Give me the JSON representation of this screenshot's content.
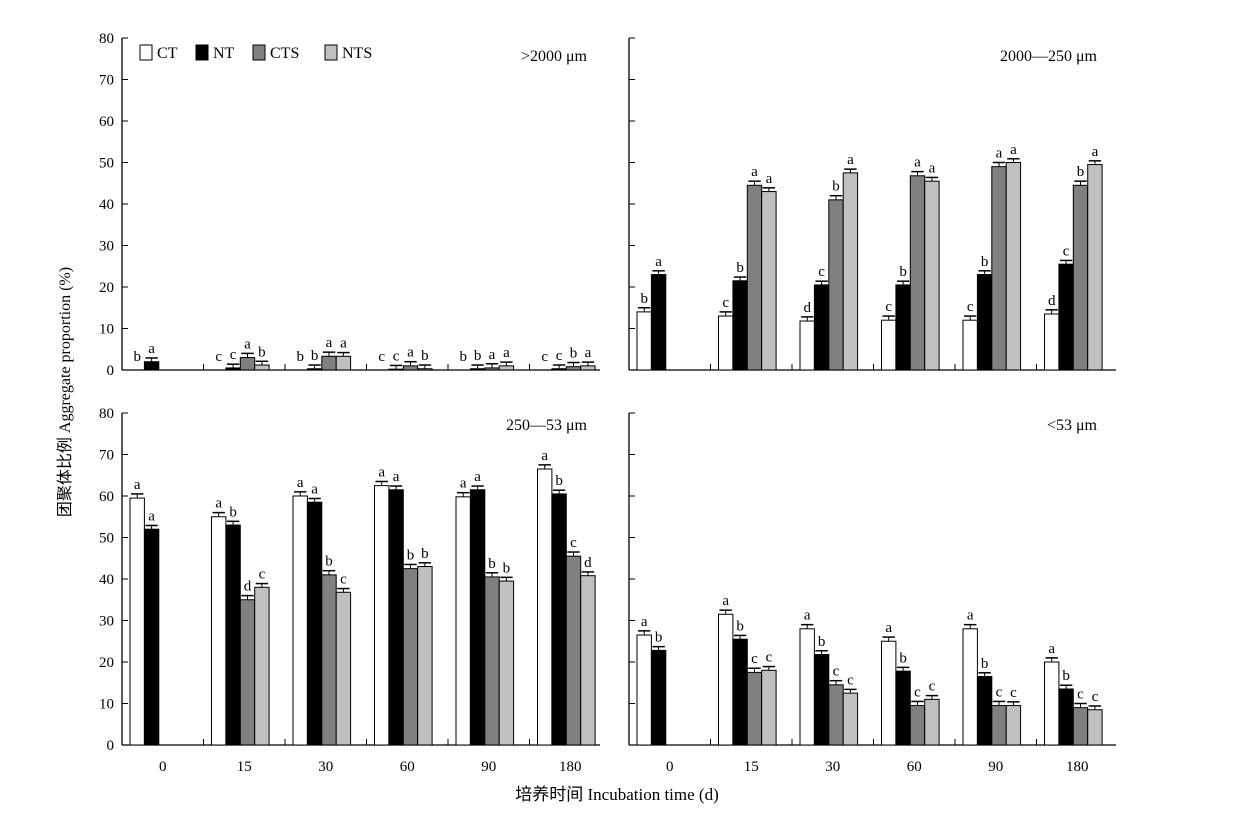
{
  "figure": {
    "ylabel": "团聚体比例 Aggregate proportion (%)",
    "xlabel": "培养时间 Incubation time (d)",
    "colors": {
      "CT": "#ffffff",
      "NT": "#000000",
      "CTS": "#808080",
      "NTS": "#c0c0c0"
    },
    "legend": [
      "CT",
      "NT",
      "CTS",
      "NTS"
    ]
  },
  "chart_data": [
    {
      "type": "bar",
      "title": ">2000 μm",
      "categories": [
        "0",
        "15",
        "30",
        "60",
        "90",
        "180"
      ],
      "ylim": [
        0,
        80
      ],
      "yticks": [
        "0",
        "10",
        "20",
        "30",
        "40",
        "50",
        "60",
        "70",
        "80"
      ],
      "legend_position": "top-left",
      "series": [
        {
          "name": "CT",
          "values": [
            0,
            0,
            0,
            0,
            0,
            0
          ],
          "letters": [
            "b",
            "c",
            "b",
            "c",
            "b",
            "c"
          ]
        },
        {
          "name": "NT",
          "values": [
            2.0,
            0.5,
            0.3,
            0.2,
            0.3,
            0.3
          ],
          "letters": [
            "a",
            "c",
            "b",
            "c",
            "b",
            "c"
          ]
        },
        {
          "name": "CTS",
          "values": [
            null,
            3.0,
            3.3,
            1.0,
            0.5,
            0.8
          ],
          "letters": [
            "",
            "a",
            "a",
            "a",
            "a",
            "b"
          ]
        },
        {
          "name": "NTS",
          "values": [
            null,
            1.2,
            3.3,
            0.3,
            1.0,
            1.0
          ],
          "letters": [
            "",
            "b",
            "a",
            "b",
            "a",
            "a"
          ]
        }
      ]
    },
    {
      "type": "bar",
      "title": "2000—250 μm",
      "categories": [
        "0",
        "15",
        "30",
        "60",
        "90",
        "180"
      ],
      "ylim": [
        0,
        80
      ],
      "series": [
        {
          "name": "CT",
          "values": [
            14.0,
            13.0,
            11.8,
            12.0,
            12.0,
            13.5
          ],
          "letters": [
            "b",
            "c",
            "d",
            "c",
            "c",
            "d"
          ]
        },
        {
          "name": "NT",
          "values": [
            23.0,
            21.5,
            20.5,
            20.5,
            23.0,
            25.5
          ],
          "letters": [
            "a",
            "b",
            "c",
            "b",
            "b",
            "c"
          ]
        },
        {
          "name": "CTS",
          "values": [
            null,
            44.5,
            41.0,
            46.8,
            49.0,
            44.5
          ],
          "letters": [
            "",
            "a",
            "b",
            "a",
            "a",
            "b"
          ]
        },
        {
          "name": "NTS",
          "values": [
            null,
            43.0,
            47.5,
            45.5,
            50.0,
            49.5
          ],
          "letters": [
            "",
            "a",
            "a",
            "a",
            "a",
            "a"
          ]
        }
      ]
    },
    {
      "type": "bar",
      "title": "250—53 μm",
      "categories": [
        "0",
        "15",
        "30",
        "60",
        "90",
        "180"
      ],
      "ylim": [
        0,
        80
      ],
      "yticks": [
        "0",
        "10",
        "20",
        "30",
        "40",
        "50",
        "60",
        "70",
        "80"
      ],
      "series": [
        {
          "name": "CT",
          "values": [
            59.5,
            55.0,
            60.0,
            62.5,
            59.8,
            66.5
          ],
          "letters": [
            "a",
            "a",
            "a",
            "a",
            "a",
            "a"
          ]
        },
        {
          "name": "NT",
          "values": [
            52.0,
            53.0,
            58.5,
            61.5,
            61.5,
            60.5
          ],
          "letters": [
            "a",
            "b",
            "a",
            "a",
            "a",
            "b"
          ]
        },
        {
          "name": "CTS",
          "values": [
            null,
            35.0,
            41.0,
            42.5,
            40.5,
            45.5
          ],
          "letters": [
            "",
            "d",
            "b",
            "b",
            "b",
            "c"
          ]
        },
        {
          "name": "NTS",
          "values": [
            null,
            38.0,
            36.8,
            43.0,
            39.5,
            40.8
          ],
          "letters": [
            "",
            "c",
            "c",
            "b",
            "b",
            "d"
          ]
        }
      ]
    },
    {
      "type": "bar",
      "title": "<53 μm",
      "categories": [
        "0",
        "15",
        "30",
        "60",
        "90",
        "180"
      ],
      "ylim": [
        0,
        80
      ],
      "series": [
        {
          "name": "CT",
          "values": [
            26.5,
            31.5,
            28.0,
            25.0,
            28.0,
            20.0
          ],
          "letters": [
            "a",
            "a",
            "a",
            "a",
            "a",
            "a"
          ]
        },
        {
          "name": "NT",
          "values": [
            22.8,
            25.5,
            21.8,
            17.8,
            16.5,
            13.5
          ],
          "letters": [
            "b",
            "b",
            "b",
            "b",
            "b",
            "b"
          ]
        },
        {
          "name": "CTS",
          "values": [
            null,
            17.5,
            14.5,
            9.5,
            9.5,
            9.0
          ],
          "letters": [
            "",
            "c",
            "c",
            "c",
            "c",
            "c"
          ]
        },
        {
          "name": "NTS",
          "values": [
            null,
            18.0,
            12.5,
            11.0,
            9.5,
            8.5
          ],
          "letters": [
            "",
            "c",
            "c",
            "c",
            "c",
            "c"
          ]
        }
      ]
    }
  ]
}
